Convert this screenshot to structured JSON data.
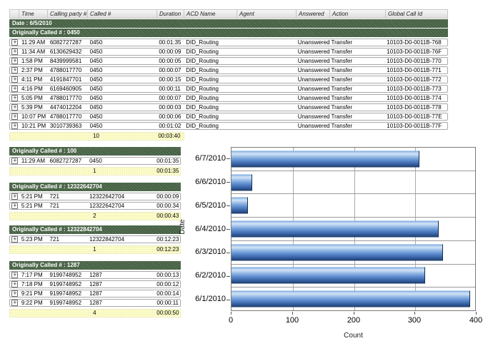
{
  "table": {
    "date_band": "Date : 6/5/2010",
    "columns": [
      "",
      "Time",
      "Calling party #",
      "Called #",
      "Duration",
      "ACD Name",
      "Agent",
      "Answered",
      "Action",
      "Global Call Id"
    ],
    "groups": [
      {
        "label": "Originally Called # : 0450",
        "full_width": true,
        "rows": [
          [
            "11:29 AM",
            "6082727287",
            "0450",
            "00:01:35",
            "DID_Routing",
            "",
            "Unanswered",
            "Transfer",
            "10103-D0-0011B-768"
          ],
          [
            "11:34 AM",
            "6130629432",
            "0450",
            "00:00:09",
            "DID_Routing",
            "",
            "Unanswered",
            "Transfer",
            "10103-D0-0011B-76F"
          ],
          [
            "1:58 PM",
            "8439999581",
            "0450",
            "00:00:05",
            "DID_Routing",
            "",
            "Unanswered",
            "Transfer",
            "10103-D0-0011B-770"
          ],
          [
            "2:37 PM",
            "4788017770",
            "0450",
            "00:00:07",
            "DID_Routing",
            "",
            "Unanswered",
            "Transfer",
            "10103-D0-0011B-771"
          ],
          [
            "4:11 PM",
            "4191847701",
            "0450",
            "00:00:15",
            "DID_Routing",
            "",
            "Unanswered",
            "Transfer",
            "10103-D0-0011B-772"
          ],
          [
            "4:16 PM",
            "6169460905",
            "0450",
            "00:00:11",
            "DID_Routing",
            "",
            "Unanswered",
            "Transfer",
            "10103-D0-0011B-773"
          ],
          [
            "5:05 PM",
            "4788017770",
            "0450",
            "00:00:07",
            "DID_Routing",
            "",
            "Unanswered",
            "Transfer",
            "10103-D0-0011B-774"
          ],
          [
            "5:39 PM",
            "4474012204",
            "0450",
            "00:00:03",
            "DID_Routing",
            "",
            "Unanswered",
            "Transfer",
            "10103-D0-0011B-778"
          ],
          [
            "10:07 PM",
            "4788017770",
            "0450",
            "00:00:06",
            "DID_Routing",
            "",
            "Unanswered",
            "Transfer",
            "10103-D0-0011B-77E"
          ],
          [
            "10:21 PM",
            "3010739363",
            "0450",
            "00:01:02",
            "DID_Routing",
            "",
            "Unanswered",
            "Transfer",
            "10103-D0-0011B-77F"
          ]
        ],
        "summary": {
          "count": "10",
          "duration": "00:03:40"
        }
      },
      {
        "label": "Originally Called # : 100",
        "full_width": false,
        "rows": [
          [
            "11:29 AM",
            "6082727287",
            "0450",
            "00:01:35"
          ]
        ],
        "summary": {
          "count": "1",
          "duration": "00:01:35"
        }
      },
      {
        "label": "Originally Called # : 12322642704",
        "full_width": false,
        "rows": [
          [
            "5:21 PM",
            "721",
            "12322642704",
            "00:00:09"
          ],
          [
            "5:21 PM",
            "721",
            "12322642704",
            "00:00:34"
          ]
        ],
        "summary": {
          "count": "2",
          "duration": "00:00:43"
        }
      },
      {
        "label": "Originally Called # : 12322842704",
        "full_width": false,
        "rows": [
          [
            "5:23 PM",
            "721",
            "12322842704",
            "00:12:23"
          ]
        ],
        "summary": {
          "count": "1",
          "duration": "00:12:23"
        }
      },
      {
        "label": "Originally Called # : 1287",
        "full_width": false,
        "rows": [
          [
            "7:17 PM",
            "9199748952",
            "1287",
            "00:00:13"
          ],
          [
            "7:18 PM",
            "9199748952",
            "1287",
            "00:00:12"
          ],
          [
            "9:21 PM",
            "9199748952",
            "1287",
            "00:00:14"
          ],
          [
            "9:22 PM",
            "9199748952",
            "1287",
            "00:00:11"
          ]
        ],
        "summary": {
          "count": "4",
          "duration": "00:00:50"
        }
      }
    ],
    "expand_icon": "+"
  },
  "chart_data": {
    "type": "bar",
    "orientation": "horizontal",
    "categories": [
      "6/7/2010",
      "6/6/2010",
      "6/5/2010",
      "6/4/2010",
      "6/3/2010",
      "6/2/2010",
      "6/1/2010"
    ],
    "values": [
      308,
      34,
      27,
      340,
      347,
      318,
      392
    ],
    "title": "",
    "xlabel": "Count",
    "ylabel": "Date",
    "xlim": [
      0,
      400
    ],
    "xticks": [
      0,
      100,
      200,
      300,
      400
    ],
    "grid": true,
    "legend": "none"
  },
  "colors": {
    "group_header_green": "#4f6b4c",
    "summary_yellow": "#ffffcc",
    "bar_blue_mid": "#5b8fd0",
    "bar_blue_dark": "#1d3a66",
    "grid_gray": "#ababab"
  }
}
